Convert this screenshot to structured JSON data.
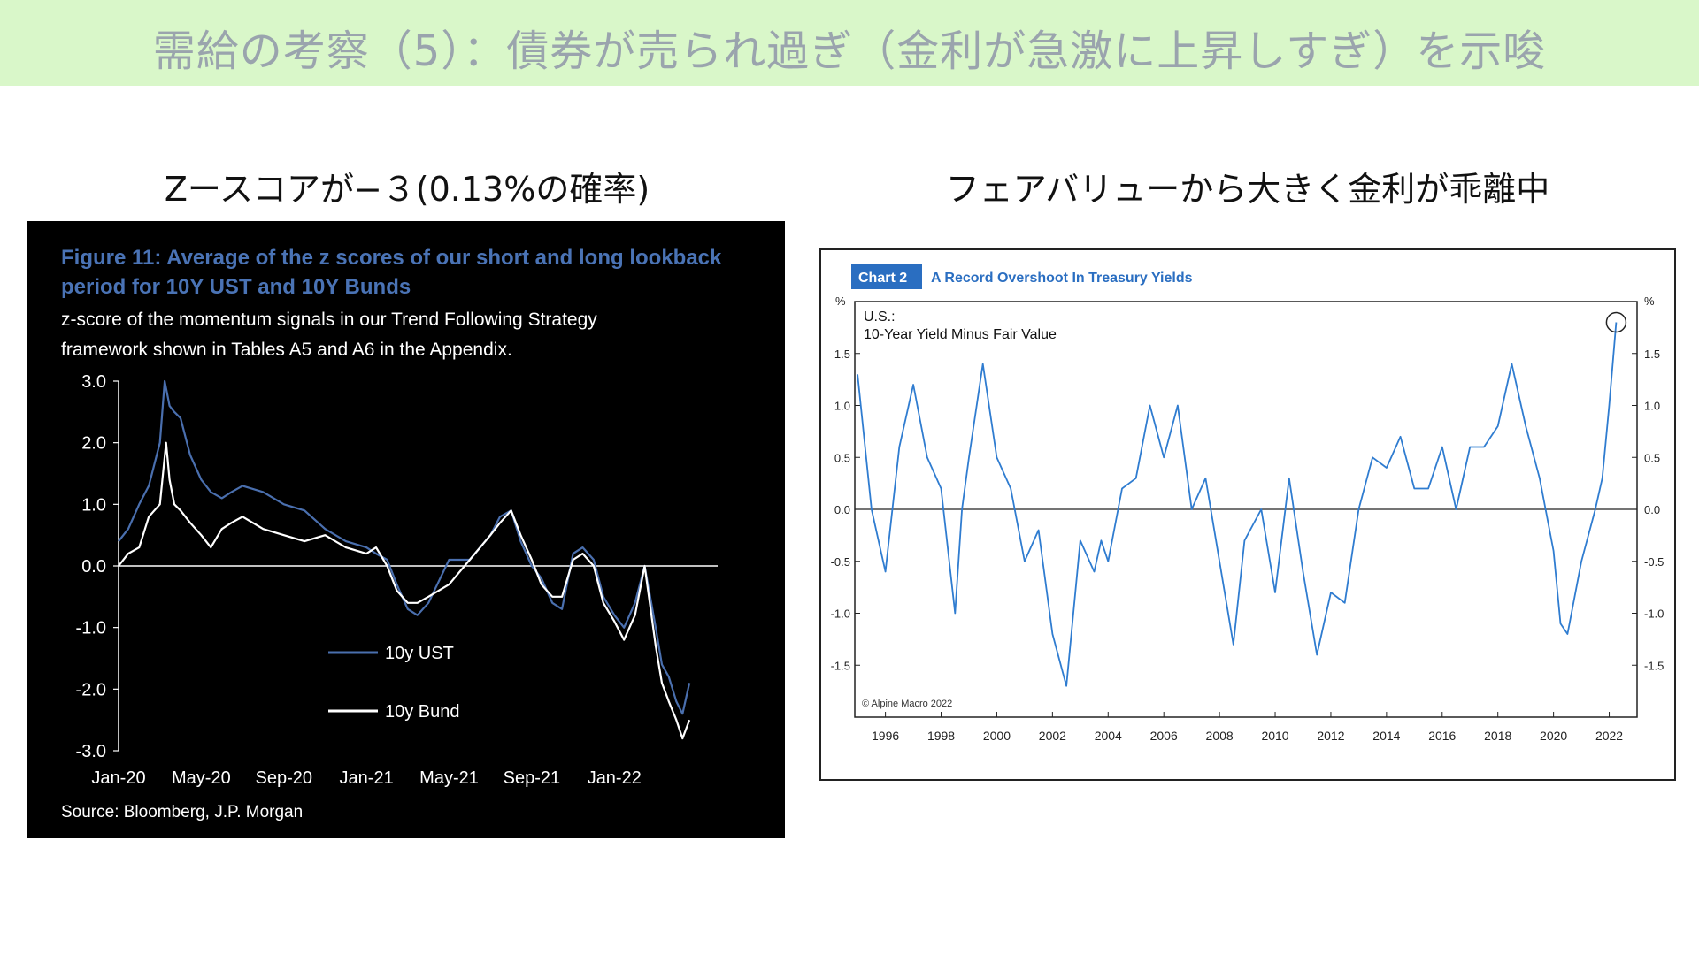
{
  "slide": {
    "title": "需給の考察（5）：債券が売られ過ぎ（金利が急激に上昇しすぎ）を示唆",
    "left_caption": "Zースコアが−３(0.13%の確率)",
    "right_caption": "フェアバリューから大きく金利が乖離中",
    "banner_color": "#d9f7c9"
  },
  "chart_data": [
    {
      "type": "line",
      "title": "Figure 11: Average of the z scores of our short and long lookback period for 10Y UST and 10Y Bunds",
      "title_line1": "Figure 11: Average of the z scores of our short and long lookback",
      "title_line2": "period for 10Y UST and 10Y Bunds",
      "subtitle_line1": "z-score of the momentum signals in our Trend Following Strategy",
      "subtitle_line2": "framework shown in Tables A5 and A6 in the Appendix.",
      "source": "Source: Bloomberg, J.P. Morgan",
      "background": "#000000",
      "title_color": "#4a73b5",
      "ylim": [
        -3.0,
        3.0
      ],
      "y_ticks": [
        "3.0",
        "2.0",
        "1.0",
        "0.0",
        "-1.0",
        "-2.0",
        "-3.0"
      ],
      "x_ticks": [
        "Jan-20",
        "May-20",
        "Sep-20",
        "Jan-21",
        "May-21",
        "Sep-21",
        "Jan-22"
      ],
      "legend_position": "bottom-right",
      "series": [
        {
          "name": "10y UST",
          "color": "#4a6fae",
          "x": [
            "2020-01",
            "2020-01-15",
            "2020-02",
            "2020-02-15",
            "2020-03",
            "2020-03-08",
            "2020-03-15",
            "2020-03-22",
            "2020-04",
            "2020-04-15",
            "2020-05",
            "2020-05-15",
            "2020-06",
            "2020-06-15",
            "2020-07",
            "2020-08",
            "2020-09",
            "2020-10",
            "2020-11",
            "2020-12",
            "2021-01",
            "2021-01-15",
            "2021-02",
            "2021-02-15",
            "2021-03",
            "2021-03-15",
            "2021-04",
            "2021-05",
            "2021-06",
            "2021-07",
            "2021-07-15",
            "2021-08",
            "2021-08-15",
            "2021-09",
            "2021-09-15",
            "2021-10",
            "2021-10-15",
            "2021-11",
            "2021-11-15",
            "2021-12",
            "2021-12-15",
            "2022-01",
            "2022-01-15",
            "2022-02",
            "2022-02-15",
            "2022-03",
            "2022-03-10",
            "2022-03-20",
            "2022-04",
            "2022-04-10",
            "2022-04-20"
          ],
          "values": [
            0.4,
            0.6,
            1.0,
            1.3,
            2.0,
            3.0,
            2.6,
            2.5,
            2.4,
            1.8,
            1.4,
            1.2,
            1.1,
            1.2,
            1.3,
            1.2,
            1.0,
            0.9,
            0.6,
            0.4,
            0.3,
            0.2,
            0.1,
            -0.3,
            -0.7,
            -0.8,
            -0.6,
            0.1,
            0.1,
            0.5,
            0.8,
            0.9,
            0.4,
            0.0,
            -0.2,
            -0.6,
            -0.7,
            0.2,
            0.3,
            0.1,
            -0.5,
            -0.8,
            -1.0,
            -0.6,
            0.0,
            -1.0,
            -1.6,
            -1.8,
            -2.2,
            -2.4,
            -1.9
          ]
        },
        {
          "name": "10y Bund",
          "color": "#ffffff",
          "x": [
            "2020-01",
            "2020-01-15",
            "2020-02",
            "2020-02-15",
            "2020-03",
            "2020-03-10",
            "2020-03-15",
            "2020-03-22",
            "2020-04",
            "2020-04-15",
            "2020-05",
            "2020-05-15",
            "2020-06",
            "2020-06-15",
            "2020-07",
            "2020-08",
            "2020-09",
            "2020-10",
            "2020-11",
            "2020-12",
            "2021-01",
            "2021-01-15",
            "2021-02",
            "2021-02-15",
            "2021-03",
            "2021-03-15",
            "2021-04",
            "2021-05",
            "2021-06",
            "2021-07",
            "2021-07-15",
            "2021-08",
            "2021-08-15",
            "2021-09",
            "2021-09-15",
            "2021-10",
            "2021-10-15",
            "2021-11",
            "2021-11-15",
            "2021-12",
            "2021-12-15",
            "2022-01",
            "2022-01-15",
            "2022-02",
            "2022-02-15",
            "2022-03",
            "2022-03-10",
            "2022-03-20",
            "2022-04",
            "2022-04-10",
            "2022-04-20"
          ],
          "values": [
            0.0,
            0.2,
            0.3,
            0.8,
            1.0,
            2.0,
            1.4,
            1.0,
            0.9,
            0.7,
            0.5,
            0.3,
            0.6,
            0.7,
            0.8,
            0.6,
            0.5,
            0.4,
            0.5,
            0.3,
            0.2,
            0.3,
            0.0,
            -0.4,
            -0.6,
            -0.6,
            -0.5,
            -0.3,
            0.1,
            0.5,
            0.7,
            0.9,
            0.5,
            0.1,
            -0.3,
            -0.5,
            -0.5,
            0.1,
            0.2,
            0.0,
            -0.6,
            -0.9,
            -1.2,
            -0.8,
            0.0,
            -1.3,
            -1.9,
            -2.2,
            -2.5,
            -2.8,
            -2.5
          ]
        }
      ]
    },
    {
      "type": "line",
      "chart_label": "Chart 2",
      "title": "A Record Overshoot In Treasury Yields",
      "label_color": "#2a6ec1",
      "inner_label_line1": "U.S.:",
      "inner_label_line2": "10-Year Yield Minus Fair Value",
      "copyright": "© Alpine Macro 2022",
      "ylabel_left": "%",
      "ylabel_right": "%",
      "ylim": [
        -2.0,
        2.0
      ],
      "y_ticks": [
        "1.5",
        "1.0",
        "0.5",
        "0.0",
        "-0.5",
        "-1.0",
        "-1.5"
      ],
      "x_ticks": [
        "1996",
        "1998",
        "2000",
        "2002",
        "2004",
        "2006",
        "2008",
        "2010",
        "2012",
        "2014",
        "2016",
        "2018",
        "2020",
        "2022"
      ],
      "annotation": "circle at latest point",
      "series": [
        {
          "color": "#2f7cd0",
          "x": [
            1995.0,
            1995.5,
            1996.0,
            1996.5,
            1997.0,
            1997.5,
            1998.0,
            1998.5,
            1998.75,
            1999.0,
            1999.5,
            2000.0,
            2000.5,
            2001.0,
            2001.5,
            2002.0,
            2002.5,
            2003.0,
            2003.5,
            2003.75,
            2004.0,
            2004.5,
            2005.0,
            2005.5,
            2006.0,
            2006.5,
            2007.0,
            2007.5,
            2008.0,
            2008.5,
            2008.9,
            2009.5,
            2010.0,
            2010.5,
            2011.0,
            2011.5,
            2012.0,
            2012.5,
            2013.0,
            2013.5,
            2014.0,
            2014.5,
            2015.0,
            2015.5,
            2016.0,
            2016.5,
            2017.0,
            2017.5,
            2018.0,
            2018.5,
            2019.0,
            2019.5,
            2020.0,
            2020.25,
            2020.5,
            2021.0,
            2021.5,
            2021.75,
            2022.0,
            2022.25
          ],
          "values": [
            1.3,
            0.0,
            -0.6,
            0.6,
            1.2,
            0.5,
            0.2,
            -1.0,
            0.0,
            0.5,
            1.4,
            0.5,
            0.2,
            -0.5,
            -0.2,
            -1.2,
            -1.7,
            -0.3,
            -0.6,
            -0.3,
            -0.5,
            0.2,
            0.3,
            1.0,
            0.5,
            1.0,
            0.0,
            0.3,
            -0.5,
            -1.3,
            -0.3,
            0.0,
            -0.8,
            0.3,
            -0.6,
            -1.4,
            -0.8,
            -0.9,
            0.0,
            0.5,
            0.4,
            0.7,
            0.2,
            0.2,
            0.6,
            0.0,
            0.6,
            0.6,
            0.8,
            1.4,
            0.8,
            0.3,
            -0.4,
            -1.1,
            -1.2,
            -0.5,
            0.0,
            0.3,
            1.0,
            1.8
          ]
        }
      ]
    }
  ]
}
